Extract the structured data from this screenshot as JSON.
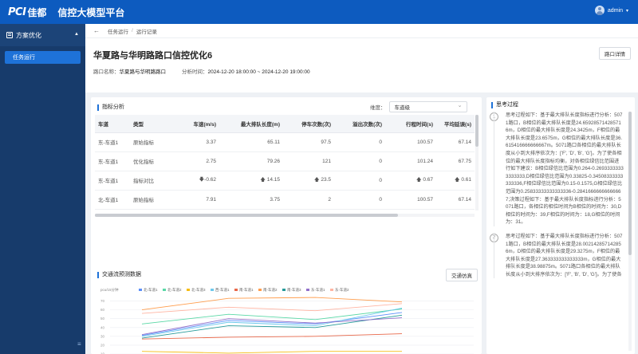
{
  "header": {
    "logo_mark": "PCI",
    "logo_brand": "佳都",
    "app_title": "信控大模型平台",
    "user": "admin"
  },
  "sidebar": {
    "group": "方案优化",
    "items": [
      {
        "label": "任务运行"
      }
    ],
    "collapse_icon": "≡"
  },
  "breadcrumb": [
    "任务运行",
    "运行记录"
  ],
  "page": {
    "title": "华夏路与华明路路口信控优化6",
    "detail_button": "路口详情",
    "intersection_label": "路口名称：",
    "intersection": "华夏路与华明路路口",
    "time_label": "分析时间：",
    "time_range": "2024-12-20 18:00:00 ~ 2024-12-20 19:00:00"
  },
  "metrics": {
    "title": "指标分析",
    "dim_label": "维度：",
    "dim_value": "车道级",
    "columns": [
      "车道",
      "类型",
      "车速(m/s)",
      "最大排队长度(m)",
      "停车次数(次)",
      "溢出次数(次)",
      "行程时间(s)",
      "平均延误(s)"
    ],
    "rows": [
      {
        "lane": "东-车道1",
        "type": "原始指标",
        "speed": "3.37",
        "queue": "65.11",
        "stops": "97.5",
        "overflow": "0",
        "travel": "100.57",
        "delay": "67.14"
      },
      {
        "lane": "东-车道1",
        "type": "优化指标",
        "speed": "2.75",
        "queue": "79.26",
        "stops": "121",
        "overflow": "0",
        "travel": "101.24",
        "delay": "67.75"
      },
      {
        "lane": "东-车道1",
        "type": "指标对比",
        "speed": "-0.62",
        "queue": "14.15",
        "stops": "23.5",
        "overflow": "0",
        "travel": "0.67",
        "delay": "0.61"
      },
      {
        "lane": "北-车道1",
        "type": "原始指标",
        "speed": "7.91",
        "queue": "3.75",
        "stops": "2",
        "overflow": "0",
        "travel": "100.57",
        "delay": "67.14"
      }
    ]
  },
  "traffic": {
    "title": "交通流预测数据",
    "sim_button": "交通仿真"
  },
  "chart_data": {
    "type": "line",
    "ylabel": "pcu/15分钟",
    "yticks": [
      10,
      20,
      30,
      40,
      50,
      60,
      70
    ],
    "ylim": [
      10,
      75
    ],
    "x": [
      0,
      1,
      2,
      3
    ],
    "series": [
      {
        "name": "北-车道1",
        "color": "#5b8ff9",
        "values": [
          31,
          48,
          44,
          57
        ]
      },
      {
        "name": "北-车道2",
        "color": "#5ad8a6",
        "values": [
          44,
          55,
          49,
          61
        ]
      },
      {
        "name": "北-车道3",
        "color": "#f6bd16",
        "values": [
          13,
          11,
          13,
          13
        ]
      },
      {
        "name": "西-车道1",
        "color": "#6dc8ec",
        "values": [
          30,
          46,
          42,
          62
        ]
      },
      {
        "name": "南-车道1",
        "color": "#e8684a",
        "values": [
          27,
          29,
          30,
          33
        ]
      },
      {
        "name": "南-车道2",
        "color": "#ff9d4d",
        "values": [
          60,
          73,
          74,
          69
        ]
      },
      {
        "name": "南-车道3",
        "color": "#269a99",
        "values": [
          28,
          42,
          40,
          54
        ]
      },
      {
        "name": "东-车道1",
        "color": "#9270ca",
        "values": [
          32,
          50,
          45,
          51
        ]
      },
      {
        "name": "东-车道2",
        "color": "#ffb4a2",
        "values": [
          56,
          63,
          59,
          67
        ]
      }
    ]
  },
  "thinking": {
    "title": "思考过程",
    "steps": [
      {
        "num": "1",
        "text": "思考过程如下：基于最大排队长度指标进行分析：5071路口，B相位的最大排队长度是24.659285714285716m，D相位的最大排队长度是24.3425m，F相位的最大排队长度是23.6575m，G相位的最大排队长度是36.615416666666667m。5071路口各相位的最大排队长度从小到大排序依次为：['F', 'D', 'B', 'G']。为了使各相位的最大排队长度指标均衡，对各相位绿信比范围进行如下建议：B相位绿信比范围为0.264-0.26933333333333333,D相位绿信比范围为0.33825-0.34508333333333336,F相位绿信比范围为0.15-0.1575,G相位绿信比范围为0.25833333333333336-0.28416666666666667;决策过程如下：基于最大排队长度指标进行分析：5071路口，各相位的相位时间为B相位的时间为：30,D相位的时间为：39,F相位的时间为：18,G相位的时间为：31。"
      },
      {
        "num": "2",
        "text": "思考过程如下：基于最大排队长度指标进行分析：5071路口，B相位的最大排队长度是28.002142857142856m，D相位的最大排队长度是29.3275m，F相位的最大排队长度是27.363333333333333m，G相位的最大排队长度是38.98875m。5071路口各相位的最大排队长度从小到大排序依次为：['F', 'B', 'D', 'G']。为了使各"
      }
    ]
  }
}
